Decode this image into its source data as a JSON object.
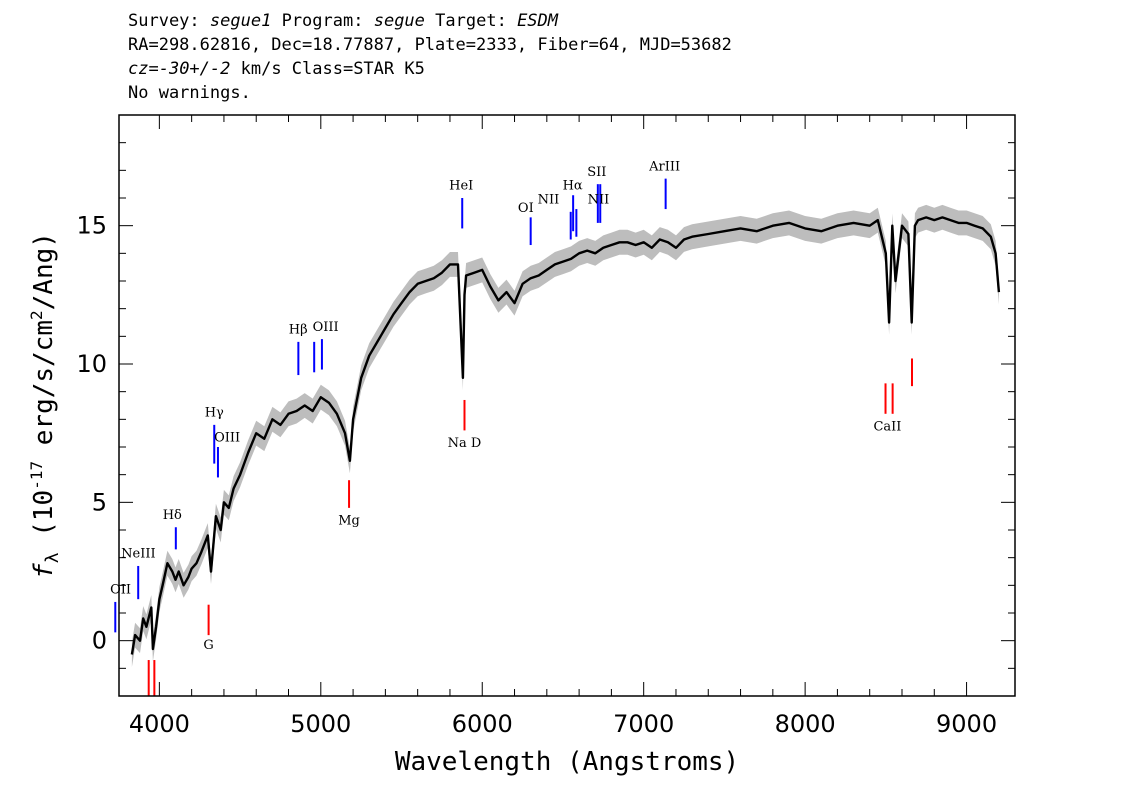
{
  "header": {
    "survey_label": "Survey:",
    "survey": "segue1",
    "program_label": "Program:",
    "program": "segue",
    "target_label": "Target:",
    "target": "ESDM",
    "coords": "RA=298.62816, Dec=18.77887, Plate=2333, Fiber=64, MJD=53682",
    "cz_label": "cz=",
    "cz_value": "-30+/-2",
    "cz_rest": " km/s Class=STAR K5",
    "warnings": "No warnings."
  },
  "colors": {
    "spectrum": "#000000",
    "error_band": "#bdbdbd",
    "emission": "#0000ff",
    "absorption": "#ff0000",
    "marker_dark": "#1a1a66"
  },
  "chart_data": {
    "type": "line",
    "xlabel": "Wavelength (Angstroms)",
    "ylabel": "f_λ (10^-17 erg/s/cm^2/Ang)",
    "xlim": [
      3750,
      9300
    ],
    "ylim": [
      -2,
      19
    ],
    "x_ticks": [
      4000,
      5000,
      6000,
      7000,
      8000,
      9000
    ],
    "y_ticks": [
      0,
      5,
      10,
      15
    ],
    "grid": false,
    "series": [
      {
        "x": [
          3830,
          3850,
          3880,
          3900,
          3920,
          3950,
          3960,
          3980,
          4000,
          4020,
          4050,
          4080,
          4100,
          4120,
          4150,
          4180,
          4200,
          4230,
          4260,
          4300,
          4320,
          4350,
          4380,
          4400,
          4430,
          4460,
          4500,
          4550,
          4600,
          4650,
          4700,
          4750,
          4800,
          4850,
          4900,
          4950,
          5000,
          5050,
          5100,
          5150,
          5180,
          5200,
          5250,
          5300,
          5350,
          5400,
          5450,
          5500,
          5550,
          5600,
          5650,
          5700,
          5750,
          5800,
          5850,
          5880,
          5890,
          5900,
          5950,
          6000,
          6050,
          6100,
          6150,
          6200,
          6250,
          6300,
          6350,
          6400,
          6450,
          6500,
          6550,
          6600,
          6650,
          6700,
          6750,
          6800,
          6850,
          6900,
          6950,
          7000,
          7050,
          7100,
          7150,
          7200,
          7250,
          7300,
          7400,
          7500,
          7600,
          7700,
          7800,
          7900,
          8000,
          8100,
          8200,
          8300,
          8400,
          8450,
          8500,
          8520,
          8540,
          8560,
          8600,
          8640,
          8660,
          8680,
          8700,
          8750,
          8800,
          8850,
          8900,
          8950,
          9000,
          9050,
          9100,
          9150,
          9180,
          9200
        ],
        "values": [
          -0.5,
          0.2,
          0.0,
          0.8,
          0.5,
          1.2,
          -0.3,
          0.5,
          1.5,
          2.0,
          2.8,
          2.5,
          2.2,
          2.5,
          2.0,
          2.3,
          2.6,
          2.8,
          3.2,
          3.8,
          2.5,
          4.5,
          4.0,
          5.0,
          4.8,
          5.5,
          6.0,
          6.8,
          7.5,
          7.3,
          8.0,
          7.8,
          8.2,
          8.3,
          8.5,
          8.3,
          8.8,
          8.6,
          8.2,
          7.5,
          6.5,
          8.0,
          9.5,
          10.3,
          10.8,
          11.3,
          11.8,
          12.2,
          12.6,
          12.9,
          13.0,
          13.1,
          13.3,
          13.6,
          13.6,
          9.5,
          12.5,
          13.2,
          13.3,
          13.4,
          12.8,
          12.3,
          12.6,
          12.2,
          12.9,
          13.1,
          13.2,
          13.4,
          13.6,
          13.7,
          13.8,
          14.0,
          14.1,
          14.0,
          14.2,
          14.3,
          14.4,
          14.4,
          14.3,
          14.4,
          14.2,
          14.5,
          14.4,
          14.2,
          14.5,
          14.6,
          14.7,
          14.8,
          14.9,
          14.8,
          15.0,
          15.1,
          14.9,
          14.8,
          15.0,
          15.1,
          15.0,
          15.2,
          14.0,
          11.5,
          15.0,
          13.0,
          15.0,
          14.7,
          11.5,
          15.0,
          15.2,
          15.3,
          15.2,
          15.3,
          15.2,
          15.1,
          15.1,
          15.0,
          14.9,
          14.6,
          14.0,
          12.6
        ]
      }
    ],
    "emission_lines": [
      {
        "label": "OII",
        "wavelength": 3727,
        "y": [
          0.3,
          1.4
        ]
      },
      {
        "label": "NeIII",
        "wavelength": 3869,
        "y": [
          1.5,
          2.7
        ]
      },
      {
        "label": "Hδ",
        "wavelength": 4102,
        "y": [
          3.3,
          4.1
        ]
      },
      {
        "label": "Hγ",
        "wavelength": 4340,
        "y": [
          6.4,
          7.8
        ]
      },
      {
        "label": "OIII",
        "wavelength": 4363,
        "y": [
          5.9,
          7.0
        ]
      },
      {
        "label": "Hβ",
        "wavelength": 4861,
        "y": [
          9.6,
          10.8
        ]
      },
      {
        "label": "OIII",
        "wavelength": 4959,
        "y": [
          9.7,
          10.8
        ]
      },
      {
        "label": "OIII",
        "wavelength": 5007,
        "y": [
          9.8,
          10.9
        ]
      },
      {
        "label": "HeI",
        "wavelength": 5876,
        "y": [
          14.9,
          16.0
        ]
      },
      {
        "label": "OI",
        "wavelength": 6300,
        "y": [
          14.3,
          15.3
        ]
      },
      {
        "label": "NII",
        "wavelength": 6548,
        "y": [
          14.5,
          15.5
        ]
      },
      {
        "label": "Hα",
        "wavelength": 6563,
        "y": [
          14.8,
          16.1
        ]
      },
      {
        "label": "NII",
        "wavelength": 6583,
        "y": [
          14.6,
          15.6
        ]
      },
      {
        "label": "SII",
        "wavelength": 6716,
        "y": [
          15.1,
          16.5
        ]
      },
      {
        "label": "SII",
        "wavelength": 6731,
        "y": [
          15.1,
          16.5
        ]
      },
      {
        "label": "ArIII",
        "wavelength": 7136,
        "y": [
          15.6,
          16.7
        ]
      }
    ],
    "emission_labels": [
      {
        "text": "OII",
        "wavelength": 3760,
        "y": 1.7
      },
      {
        "text": "NeIII",
        "wavelength": 3870,
        "y": 3.0
      },
      {
        "text": "Hδ",
        "wavelength": 4080,
        "y": 4.4
      },
      {
        "text": "Hγ",
        "wavelength": 4340,
        "y": 8.1
      },
      {
        "text": "OIII",
        "wavelength": 4420,
        "y": 7.2
      },
      {
        "text": "Hβ",
        "wavelength": 4860,
        "y": 11.1
      },
      {
        "text": "OIII",
        "wavelength": 5030,
        "y": 11.2
      },
      {
        "text": "HeI",
        "wavelength": 5870,
        "y": 16.3
      },
      {
        "text": "OI",
        "wavelength": 6270,
        "y": 15.5
      },
      {
        "text": "NII",
        "wavelength": 6410,
        "y": 15.8
      },
      {
        "text": "Hα",
        "wavelength": 6560,
        "y": 16.3
      },
      {
        "text": "NII",
        "wavelength": 6720,
        "y": 15.8
      },
      {
        "text": "SII",
        "wavelength": 6710,
        "y": 16.8
      },
      {
        "text": "ArIII",
        "wavelength": 7130,
        "y": 17.0
      }
    ],
    "absorption_lines": [
      {
        "label": "",
        "wavelength": 3934,
        "y": [
          -2.0,
          -0.7
        ]
      },
      {
        "label": "",
        "wavelength": 3969,
        "y": [
          -2.0,
          -0.7
        ]
      },
      {
        "label": "G",
        "wavelength": 4305,
        "y": [
          0.2,
          1.3
        ]
      },
      {
        "label": "Mg",
        "wavelength": 5175,
        "y": [
          4.8,
          5.8
        ]
      },
      {
        "label": "Na D",
        "wavelength": 5890,
        "y": [
          7.6,
          8.7
        ]
      },
      {
        "label": "",
        "wavelength": 8498,
        "y": [
          8.2,
          9.3
        ]
      },
      {
        "label": "",
        "wavelength": 8542,
        "y": [
          8.2,
          9.3
        ]
      },
      {
        "label": "",
        "wavelength": 8662,
        "y": [
          9.2,
          10.2
        ]
      }
    ],
    "absorption_labels": [
      {
        "text": "G",
        "wavelength": 4305,
        "y": -0.3
      },
      {
        "text": "Mg",
        "wavelength": 5175,
        "y": 4.2
      },
      {
        "text": "Na  D",
        "wavelength": 5890,
        "y": 7.0
      },
      {
        "text": "CaII",
        "wavelength": 8510,
        "y": 7.6
      }
    ]
  }
}
